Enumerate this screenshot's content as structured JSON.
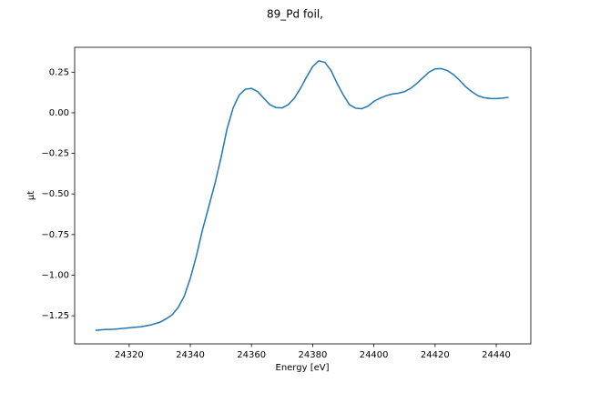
{
  "chart_data": {
    "type": "line",
    "title": "89_Pd foil,",
    "x_label": "Energy [eV]",
    "y_label": "μt",
    "x": [
      24309,
      24312,
      24315,
      24318,
      24321,
      24324,
      24327,
      24330,
      24332,
      24334,
      24336,
      24338,
      24340,
      24342,
      24344,
      24346,
      24348,
      24350,
      24352,
      24354,
      24356,
      24358,
      24360,
      24362,
      24364,
      24366,
      24368,
      24370,
      24372,
      24374,
      24376,
      24378,
      24380,
      24382,
      24384,
      24386,
      24388,
      24390,
      24392,
      24394,
      24396,
      24398,
      24400,
      24402,
      24404,
      24406,
      24408,
      24410,
      24412,
      24414,
      24416,
      24418,
      24420,
      24422,
      24424,
      24426,
      24428,
      24430,
      24432,
      24434,
      24436,
      24438,
      24440,
      24442,
      24444
    ],
    "series": [
      {
        "color": "#1f77b4",
        "values": [
          -1.34,
          -1.335,
          -1.333,
          -1.328,
          -1.322,
          -1.317,
          -1.307,
          -1.29,
          -1.27,
          -1.245,
          -1.2,
          -1.13,
          -1.02,
          -0.88,
          -0.72,
          -0.58,
          -0.44,
          -0.28,
          -0.1,
          0.03,
          0.11,
          0.145,
          0.15,
          0.13,
          0.09,
          0.05,
          0.032,
          0.03,
          0.05,
          0.09,
          0.15,
          0.22,
          0.285,
          0.32,
          0.31,
          0.26,
          0.18,
          0.11,
          0.05,
          0.028,
          0.025,
          0.04,
          0.07,
          0.09,
          0.105,
          0.115,
          0.12,
          0.13,
          0.15,
          0.18,
          0.215,
          0.25,
          0.27,
          0.272,
          0.26,
          0.235,
          0.2,
          0.16,
          0.13,
          0.105,
          0.093,
          0.088,
          0.087,
          0.09,
          0.095
        ]
      }
    ],
    "xlim": [
      24302.2,
      24451.3
    ],
    "ylim": [
      -1.423,
      0.403
    ],
    "xticks": [
      24320,
      24340,
      24360,
      24380,
      24400,
      24420,
      24440
    ],
    "yticks": [
      {
        "value": 0.25,
        "label": "0.25"
      },
      {
        "value": 0,
        "label": "0.00"
      },
      {
        "value": -0.25,
        "label": "−0.25"
      },
      {
        "value": -0.5,
        "label": "−0.50"
      },
      {
        "value": -0.75,
        "label": "−0.75"
      },
      {
        "value": -1,
        "label": "−1.00"
      },
      {
        "value": -1.25,
        "label": "−1.25"
      }
    ]
  }
}
